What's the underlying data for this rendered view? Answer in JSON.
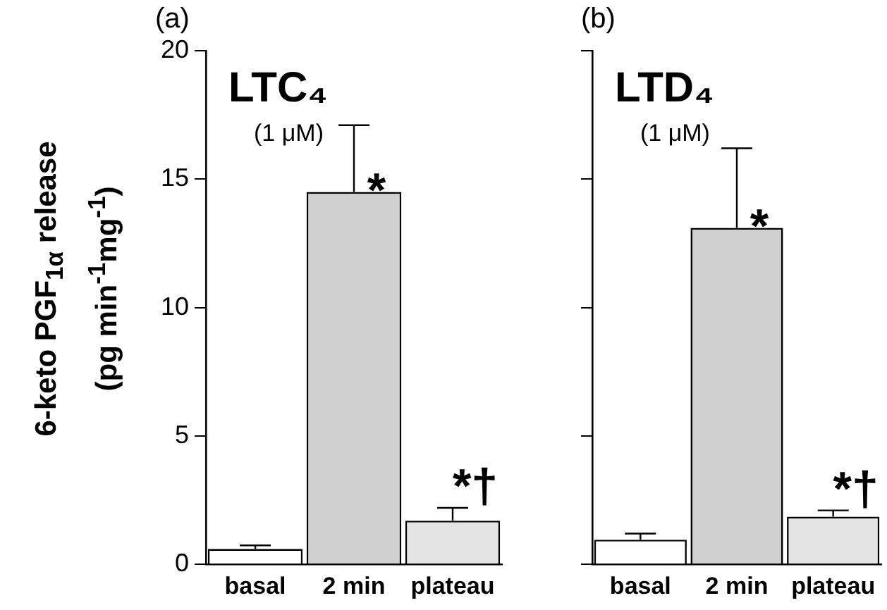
{
  "chart_data": [
    {
      "type": "bar",
      "title": "(a)",
      "ylabel": "6-keto PGF$_{1α}$ release (pg min$^{-1}$mg$^{-1}$)",
      "categories": [
        "basal",
        "2 min",
        "plateau"
      ],
      "values": [
        0.6,
        14.5,
        1.7
      ],
      "colors": [
        "#ffffff",
        "#d0d0d0",
        "#e4e4e4"
      ],
      "errors": [
        [
          0.6,
          0.74
        ],
        [
          14.5,
          17.1
        ],
        [
          1.7,
          2.2
        ]
      ],
      "ylim": [
        0,
        20
      ],
      "yticks": [
        0,
        5,
        10,
        15,
        20
      ],
      "grid": false,
      "annotations": [
        "LTC₄",
        "(1 μM)",
        {
          "text": "*",
          "x": "2 min",
          "y": 14.5
        },
        {
          "text": "*†",
          "x": "plateau",
          "y": 2.2
        }
      ]
    },
    {
      "type": "bar",
      "title": "(b)",
      "categories": [
        "basal",
        "2 min",
        "plateau"
      ],
      "values": [
        0.96,
        13.1,
        1.86
      ],
      "colors": [
        "#ffffff",
        "#d0d0d0",
        "#e4e4e4"
      ],
      "errors": [
        [
          0.96,
          1.2
        ],
        [
          13.1,
          16.2
        ],
        [
          1.86,
          2.1
        ]
      ],
      "ylim": [
        0,
        20
      ],
      "yticks": [
        0,
        5,
        10,
        15,
        20
      ],
      "grid": false,
      "tick_labels": "x",
      "annotations": [
        "LTD₄",
        "(1 μM)",
        {
          "text": "*",
          "x": "2 min",
          "y": 13.1
        },
        {
          "text": "*†",
          "x": "plateau",
          "y": 2.1
        }
      ]
    }
  ]
}
